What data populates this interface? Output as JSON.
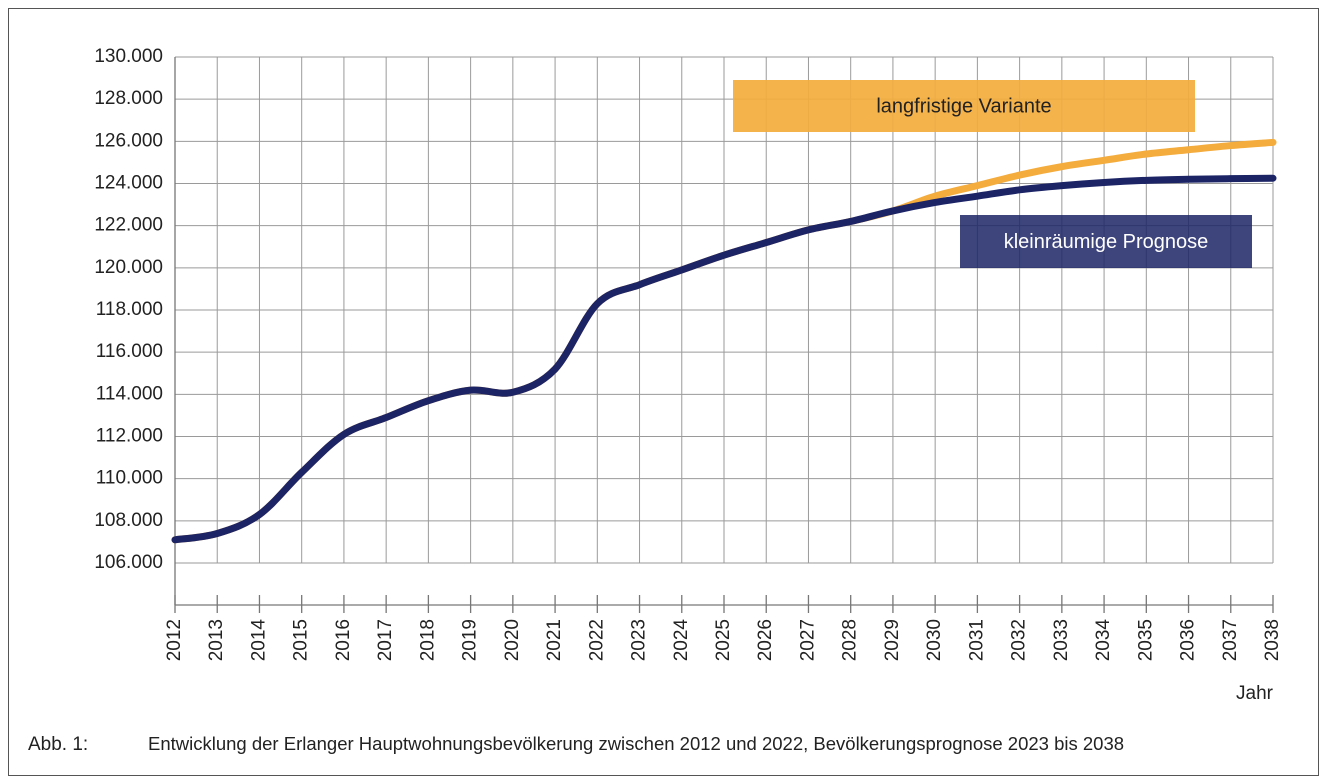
{
  "chart_data": {
    "type": "line",
    "caption_label": "Abb. 1:",
    "caption": "Entwicklung der Erlanger Hauptwohnungsbevölkerung zwischen 2012 und 2022, Bevölkerungsprognose 2023 bis 2038",
    "x_label": "Jahr",
    "categories": [
      "2012",
      "2013",
      "2014",
      "2015",
      "2016",
      "2017",
      "2018",
      "2019",
      "2020",
      "2021",
      "2022",
      "2023",
      "2024",
      "2025",
      "2026",
      "2027",
      "2028",
      "2029",
      "2030",
      "2031",
      "2032",
      "2033",
      "2034",
      "2035",
      "2036",
      "2037",
      "2038"
    ],
    "series": [
      {
        "name": "langfristige Variante",
        "color": "#f4ac3d",
        "values": [
          107100,
          107400,
          108300,
          110300,
          112100,
          112900,
          113700,
          114200,
          114100,
          115200,
          118300,
          119200,
          119900,
          120600,
          121200,
          121800,
          122200,
          122700,
          123400,
          123900,
          124400,
          124800,
          125100,
          125400,
          125600,
          125800,
          125950
        ]
      },
      {
        "name": "kleinräumige Prognose",
        "color": "#1c2466",
        "values": [
          107100,
          107400,
          108300,
          110300,
          112100,
          112900,
          113700,
          114200,
          114100,
          115200,
          118300,
          119200,
          119900,
          120600,
          121200,
          121800,
          122200,
          122700,
          123100,
          123400,
          123700,
          123900,
          124050,
          124150,
          124200,
          124230,
          124250
        ]
      }
    ],
    "ylim": [
      106000,
      130000
    ],
    "yticks": [
      {
        "value": 106000,
        "label": "106.000"
      },
      {
        "value": 108000,
        "label": "108.000"
      },
      {
        "value": 110000,
        "label": "110.000"
      },
      {
        "value": 112000,
        "label": "112.000"
      },
      {
        "value": 114000,
        "label": "114.000"
      },
      {
        "value": 116000,
        "label": "116.000"
      },
      {
        "value": 118000,
        "label": "118.000"
      },
      {
        "value": 120000,
        "label": "120.000"
      },
      {
        "value": 122000,
        "label": "122.000"
      },
      {
        "value": 124000,
        "label": "124.000"
      },
      {
        "value": 126000,
        "label": "126.000"
      },
      {
        "value": 128000,
        "label": "128.000"
      },
      {
        "value": 130000,
        "label": "130.000"
      }
    ],
    "grid": true
  }
}
